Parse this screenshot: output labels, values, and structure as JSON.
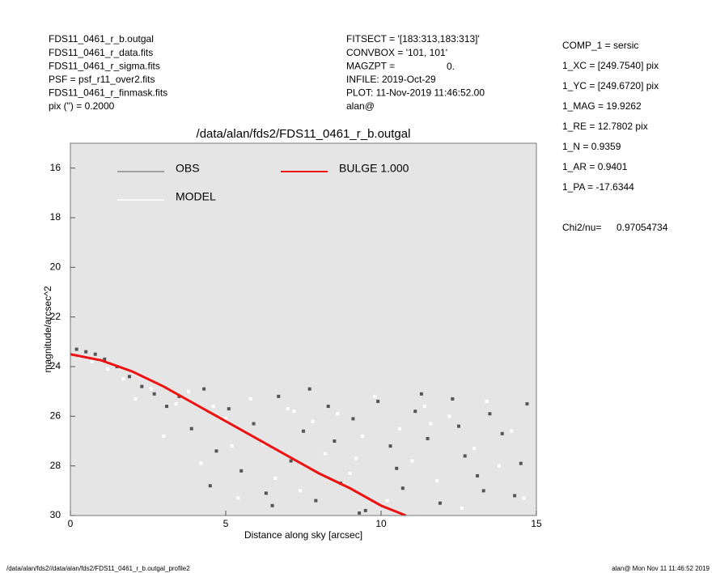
{
  "header": {
    "left": [
      "FDS11_0461_r_b.outgal",
      "FDS11_0461_r_data.fits",
      "FDS11_0461_r_sigma.fits",
      "PSF    = psf_r11_over2.fits",
      "FDS11_0461_r_finmask.fits",
      "pix (\") =  0.2000"
    ],
    "middle": [
      "FITSECT = '[183:313,183:313]'",
      "CONVBOX = '101, 101'",
      "MAGZPT =",
      "INFILE: 2019-Oct-29",
      "PLOT: 11-Nov-2019 11:46:52.00",
      "alan@"
    ],
    "magzpt_value": "0.",
    "params": [
      "COMP_1  = sersic",
      "1_XC    = [249.7540] pix",
      "1_YC    = [249.6720] pix",
      "1_MAG    = 19.9262",
      "1_RE    = 12.7802 pix",
      "1_N     = 0.9359",
      "1_AR    = 0.9401",
      "1_PA    = -17.6344"
    ],
    "chi2_label": "Chi2/nu=",
    "chi2_value": "0.97054734"
  },
  "chart_data": {
    "type": "scatter",
    "title": "/data/alan/fds2/FDS11_0461_r_b.outgal",
    "x_label": "Distance along sky [arcsec]",
    "y_label": "magnitude/arcsec^2",
    "xlim": [
      0,
      15
    ],
    "ylim": [
      15,
      30
    ],
    "y_inverted": true,
    "xticks": [
      0,
      5,
      10,
      15
    ],
    "yticks": [
      16,
      18,
      20,
      22,
      24,
      26,
      28,
      30
    ],
    "series": [
      {
        "name": "OBS",
        "color": "#555555",
        "legend_color": "#8a8a8a",
        "x": [
          0.2,
          0.5,
          0.8,
          1.1,
          1.5,
          1.9,
          2.3,
          2.7,
          3.1,
          3.5,
          3.9,
          4.3,
          4.7,
          5.1,
          5.5,
          5.9,
          6.3,
          6.7,
          7.1,
          7.5,
          7.9,
          8.3,
          8.7,
          9.1,
          9.5,
          9.9,
          10.3,
          10.7,
          11.1,
          11.5,
          11.9,
          12.3,
          12.7,
          13.1,
          13.5,
          13.9,
          14.3,
          14.7,
          4.5,
          6.5,
          8.5,
          10.5,
          12.5,
          14.5,
          7.7,
          9.3,
          11.3,
          13.3
        ],
        "values": [
          23.3,
          23.4,
          23.5,
          23.7,
          24.0,
          24.4,
          24.8,
          25.1,
          25.6,
          25.2,
          26.5,
          24.9,
          27.4,
          25.7,
          28.2,
          26.3,
          29.1,
          25.2,
          27.8,
          26.6,
          29.4,
          25.6,
          28.7,
          26.1,
          29.8,
          25.4,
          27.2,
          28.9,
          25.8,
          26.9,
          29.5,
          25.3,
          27.6,
          28.4,
          25.9,
          26.7,
          29.2,
          25.5,
          28.8,
          29.6,
          27.0,
          28.1,
          26.4,
          27.9,
          24.9,
          29.9,
          25.1,
          29.0
        ]
      },
      {
        "name": "MODEL",
        "color": "#ffffff",
        "legend_color": "#ffffff",
        "x": [
          0.3,
          0.7,
          1.2,
          1.7,
          2.1,
          2.6,
          3.0,
          3.4,
          3.8,
          4.2,
          4.6,
          5.0,
          5.4,
          5.8,
          6.2,
          6.6,
          7.0,
          7.4,
          7.8,
          8.2,
          8.6,
          9.0,
          9.4,
          9.8,
          10.2,
          10.6,
          11.0,
          11.4,
          11.8,
          12.2,
          12.6,
          13.0,
          13.4,
          13.8,
          14.2,
          14.6,
          5.2,
          7.2,
          9.2,
          11.6
        ],
        "values": [
          23.6,
          23.8,
          24.1,
          24.5,
          25.3,
          24.9,
          26.8,
          25.5,
          25.0,
          27.9,
          25.6,
          26.1,
          29.3,
          25.3,
          27.1,
          28.5,
          25.7,
          29.0,
          26.2,
          27.5,
          25.9,
          28.3,
          26.8,
          25.2,
          29.4,
          26.5,
          27.8,
          25.6,
          28.6,
          26.0,
          29.7,
          27.3,
          25.4,
          28.0,
          26.6,
          29.3,
          27.2,
          25.8,
          27.7,
          26.3
        ]
      },
      {
        "name": "BULGE  1.000",
        "color": "#ee1111",
        "legend_color": "#ee1111",
        "line": true,
        "x": [
          0,
          1,
          2,
          3,
          4,
          5,
          6,
          7,
          8,
          9,
          10,
          10.8
        ],
        "values": [
          23.5,
          23.75,
          24.2,
          24.8,
          25.5,
          26.2,
          26.9,
          27.6,
          28.3,
          28.9,
          29.6,
          30
        ]
      }
    ],
    "background": "#e5e5e5"
  },
  "footer": {
    "left": "/data/alan/fds2//data/alan/fds2/FDS11_0461_r_b.outgal_profile2",
    "right": "alan@  Mon Nov 11 11:46:52 2019"
  }
}
